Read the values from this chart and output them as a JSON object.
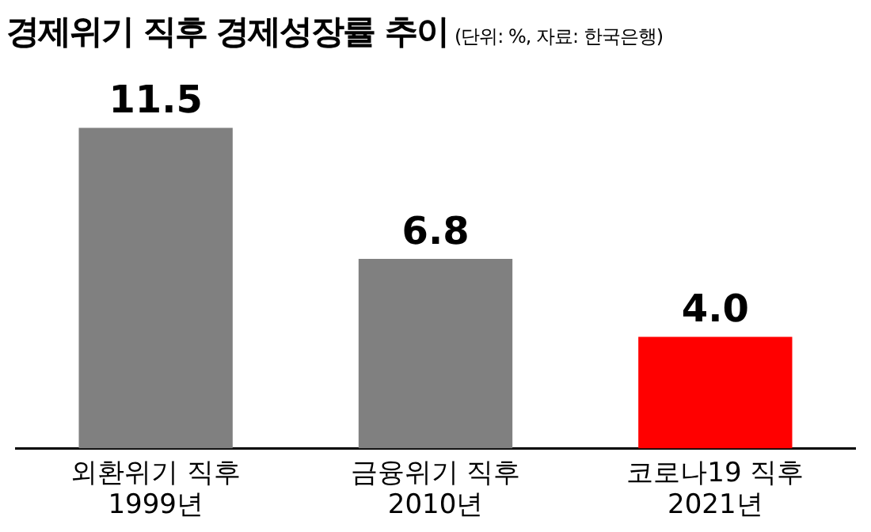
{
  "chart_data": {
    "type": "bar",
    "title": "경제위기 직후 경제성장률 추이",
    "subtitle": "(단위: %, 자료: 한국은행)",
    "categories": [
      "외환위기 직후\n1999년",
      "금융위기 직후\n2010년",
      "코로나19 직후\n2021년"
    ],
    "values": [
      11.5,
      6.8,
      4.0
    ],
    "colors": [
      "#808080",
      "#808080",
      "#ff0000"
    ],
    "value_labels": [
      "11.5",
      "6.8",
      "4.0"
    ],
    "grid": false,
    "legend": false
  }
}
